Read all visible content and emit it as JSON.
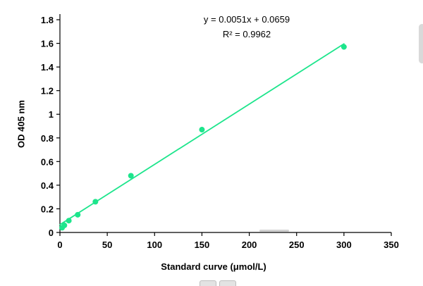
{
  "chart_data": {
    "type": "scatter",
    "title": "",
    "xlabel": "Standard curve (μmol/L)",
    "ylabel": "OD 405 nm",
    "equation": "y = 0.0051x + 0.0659",
    "r_squared": "R² = 0.9962",
    "xlim": [
      0,
      350
    ],
    "ylim": [
      0,
      1.8
    ],
    "x_ticks": [
      0,
      50,
      100,
      150,
      200,
      250,
      300,
      350
    ],
    "y_ticks": [
      0,
      0.2,
      0.4,
      0.6,
      0.8,
      1,
      1.2,
      1.4,
      1.6,
      1.8
    ],
    "grid": false,
    "legend": null,
    "marker_color": "#1de58c",
    "line_color": "#1de58c",
    "points": [
      {
        "x": 2.3,
        "y": 0.04
      },
      {
        "x": 4.7,
        "y": 0.06
      },
      {
        "x": 9.4,
        "y": 0.1
      },
      {
        "x": 18.8,
        "y": 0.15
      },
      {
        "x": 37.5,
        "y": 0.26
      },
      {
        "x": 75,
        "y": 0.48
      },
      {
        "x": 150,
        "y": 0.87
      },
      {
        "x": 300,
        "y": 1.57
      }
    ],
    "trendline": {
      "slope": 0.0051,
      "intercept": 0.0659,
      "x_start": 0,
      "x_end": 300
    }
  }
}
